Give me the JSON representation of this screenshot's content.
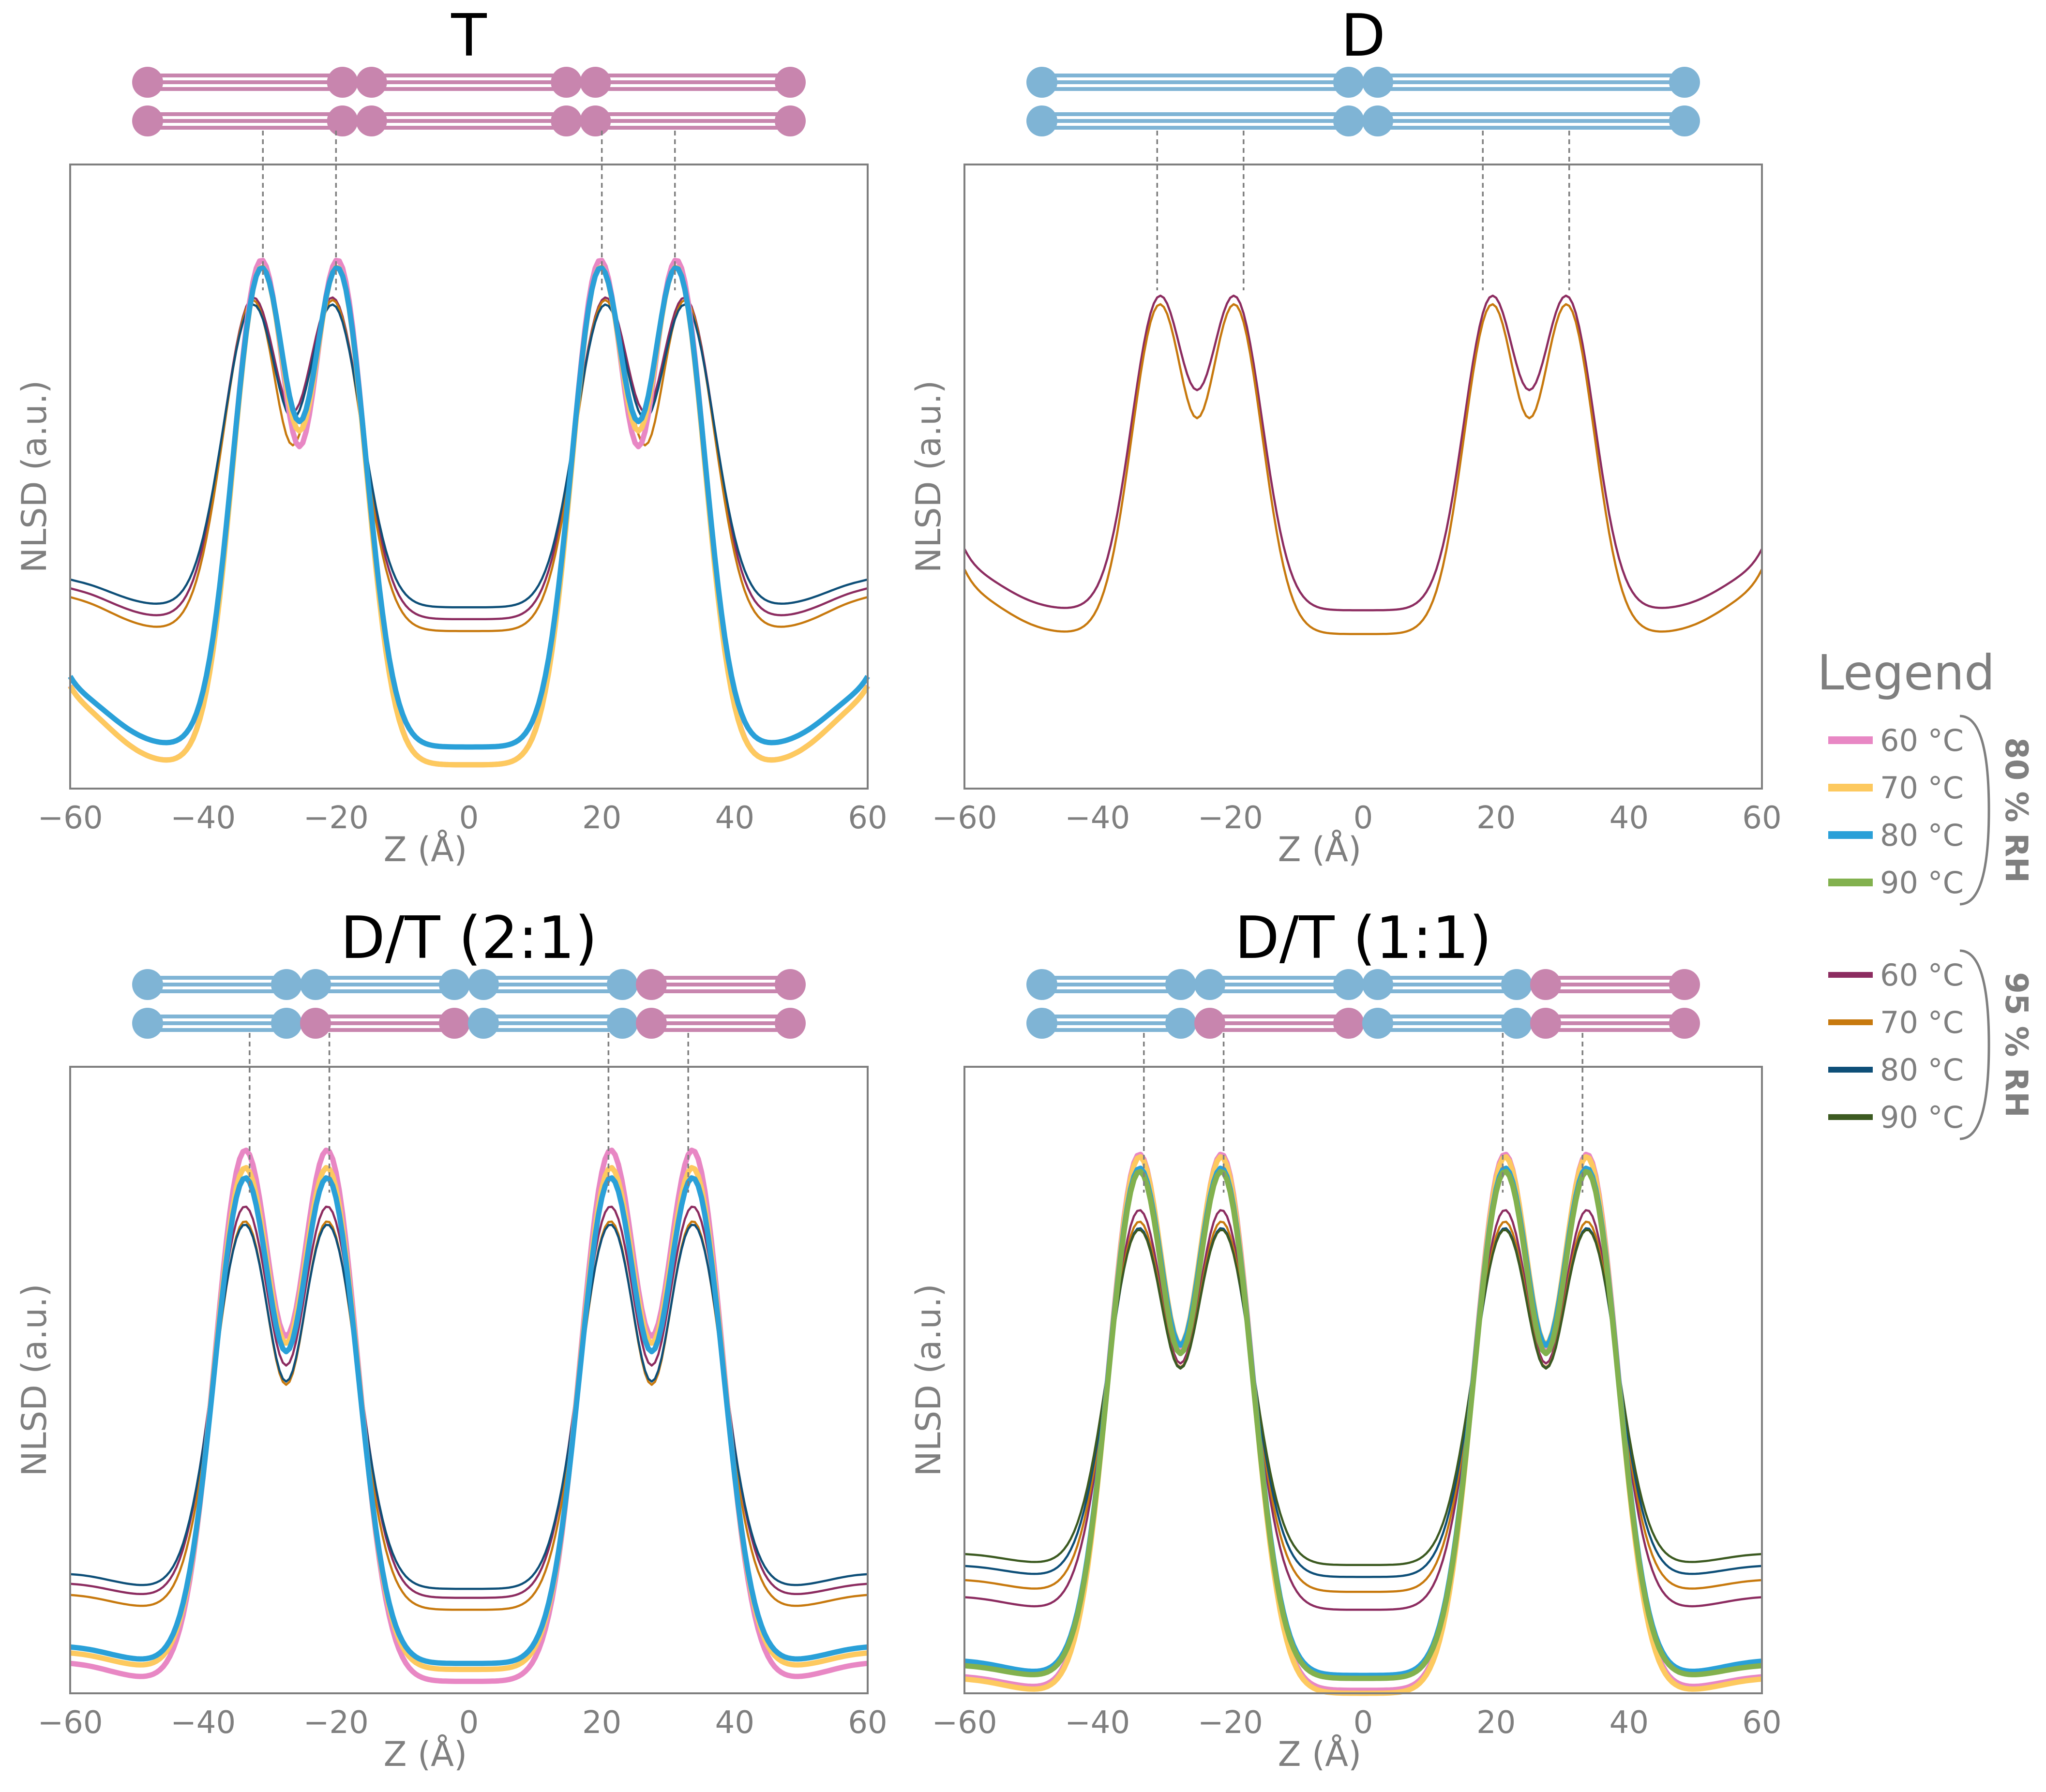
{
  "colors": {
    "rh80": {
      "60 °C": "#e887c4",
      "70 °C": "#fdc95f",
      "80 °C": "#2aa0d8",
      "90 °C": "#82b14e"
    },
    "rh95": {
      "60 °C": "#8c2c60",
      "70 °C": "#c7790e",
      "80 °C": "#0e4f78",
      "90 °C": "#3c5a21"
    },
    "lipid_D": "#7fb4d5",
    "lipid_T": "#c885ae"
  },
  "legend": {
    "title": "Legend",
    "groups": [
      {
        "label": "80 % RH",
        "rh": "rh80",
        "entries": [
          "60 °C",
          "70 °C",
          "80 °C",
          "90 °C"
        ]
      },
      {
        "label": "95 % RH",
        "rh": "rh95",
        "entries": [
          "60 °C",
          "70 °C",
          "80 °C",
          "90 °C"
        ]
      }
    ]
  },
  "chart_data": [
    {
      "type": "line",
      "title": "T",
      "xlabel": "Z (Å)",
      "ylabel": "NLSD (a.u.)",
      "xlim": [
        -60,
        60
      ],
      "ylim": [
        -1.0,
        1.1
      ],
      "xticks": [
        "−60",
        "−40",
        "−20",
        "0",
        "20",
        "40",
        "60"
      ],
      "grid": false,
      "schematic": {
        "type": "T",
        "bilayers": [
          "T",
          "T",
          "T"
        ]
      },
      "head_markers": [
        -31,
        -20,
        20,
        31
      ],
      "series": [
        {
          "name": "60 °C",
          "rh": "rh80",
          "peak": 0.98,
          "dip": 0.78,
          "min": -0.92,
          "outer": -0.12,
          "period": 51
        },
        {
          "name": "70 °C",
          "rh": "rh80",
          "peak": 0.95,
          "dip": 0.83,
          "min": -0.92,
          "outer": -0.12,
          "period": 51
        },
        {
          "name": "80 °C",
          "rh": "rh80",
          "peak": 0.94,
          "dip": 0.84,
          "min": -0.86,
          "outer": -0.16,
          "period": 51
        },
        {
          "name": "60 °C",
          "rh": "rh95",
          "peak": 0.78,
          "dip": 0.67,
          "min": -0.43,
          "outer": -0.05,
          "period": 53
        },
        {
          "name": "70 °C",
          "rh": "rh95",
          "peak": 0.78,
          "dip": 0.56,
          "min": -0.47,
          "outer": -0.05,
          "period": 53
        },
        {
          "name": "80 °C",
          "rh": "rh95",
          "peak": 0.75,
          "dip": 0.62,
          "min": -0.39,
          "outer": -0.05,
          "period": 53
        }
      ]
    },
    {
      "type": "line",
      "title": "D",
      "xlabel": "Z (Å)",
      "ylabel": "NLSD (a.u.)",
      "xlim": [
        -60,
        60
      ],
      "ylim": [
        -1.0,
        1.1
      ],
      "xticks": [
        "−60",
        "−40",
        "−20",
        "0",
        "20",
        "40",
        "60"
      ],
      "grid": false,
      "schematic": {
        "type": "D",
        "bilayers": [
          "D",
          "D"
        ]
      },
      "head_markers": [
        -31,
        -18,
        18,
        31
      ],
      "series": [
        {
          "name": "60 °C",
          "rh": "rh95",
          "peak": 0.78,
          "dip": 0.74,
          "min": -0.4,
          "outer": 0.1,
          "period": 50
        },
        {
          "name": "70 °C",
          "rh": "rh95",
          "peak": 0.76,
          "dip": 0.66,
          "min": -0.48,
          "outer": 0.05,
          "period": 50
        }
      ]
    },
    {
      "type": "line",
      "title": "D/T (2:1)",
      "xlabel": "Z (Å)",
      "ylabel": "NLSD (a.u.)",
      "xlim": [
        -60,
        60
      ],
      "ylim": [
        -1.0,
        1.1
      ],
      "xticks": [
        "−60",
        "−40",
        "−20",
        "0",
        "20",
        "40",
        "60"
      ],
      "grid": false,
      "schematic": {
        "type": "DT",
        "bilayers": [
          "D",
          "DT",
          "D",
          "T"
        ]
      },
      "head_markers": [
        -33,
        -21,
        21,
        33
      ],
      "series": [
        {
          "name": "60 °C",
          "rh": "rh80",
          "peak": 1.03,
          "dip": 0.86,
          "min": -0.96,
          "outer": -0.73,
          "period": 55
        },
        {
          "name": "70 °C",
          "rh": "rh80",
          "peak": 0.96,
          "dip": 0.8,
          "min": -0.92,
          "outer": -0.71,
          "period": 55
        },
        {
          "name": "80 °C",
          "rh": "rh80",
          "peak": 0.92,
          "dip": 0.75,
          "min": -0.9,
          "outer": -0.69,
          "period": 55
        },
        {
          "name": "60 °C",
          "rh": "rh95",
          "peak": 0.79,
          "dip": 0.58,
          "min": -0.68,
          "outer": -0.5,
          "period": 55
        },
        {
          "name": "70 °C",
          "rh": "rh95",
          "peak": 0.74,
          "dip": 0.51,
          "min": -0.72,
          "outer": -0.53,
          "period": 55
        },
        {
          "name": "80 °C",
          "rh": "rh95",
          "peak": 0.72,
          "dip": 0.49,
          "min": -0.65,
          "outer": -0.46,
          "period": 55
        }
      ]
    },
    {
      "type": "line",
      "title": "D/T (1:1)",
      "xlabel": "Z (Å)",
      "ylabel": "NLSD (a.u.)",
      "xlim": [
        -60,
        60
      ],
      "ylim": [
        -1.0,
        1.1
      ],
      "xticks": [
        "−60",
        "−40",
        "−20",
        "0",
        "20",
        "40",
        "60"
      ],
      "grid": false,
      "schematic": {
        "type": "DT",
        "bilayers": [
          "D",
          "DT",
          "D",
          "T"
        ]
      },
      "head_markers": [
        -33,
        -21,
        21,
        33
      ],
      "series": [
        {
          "name": "60 °C",
          "rh": "rh80",
          "peak": 1.02,
          "dip": 0.81,
          "min": -0.99,
          "outer": -0.82,
          "period": 55
        },
        {
          "name": "70 °C",
          "rh": "rh80",
          "peak": 1.01,
          "dip": 0.84,
          "min": -1.0,
          "outer": -0.82,
          "period": 55
        },
        {
          "name": "80 °C",
          "rh": "rh80",
          "peak": 0.96,
          "dip": 0.8,
          "min": -0.94,
          "outer": -0.76,
          "period": 55
        },
        {
          "name": "90 °C",
          "rh": "rh80",
          "peak": 0.95,
          "dip": 0.77,
          "min": -0.95,
          "outer": -0.79,
          "period": 55
        },
        {
          "name": "60 °C",
          "rh": "rh95",
          "peak": 0.78,
          "dip": 0.6,
          "min": -0.72,
          "outer": -0.56,
          "period": 55
        },
        {
          "name": "70 °C",
          "rh": "rh95",
          "peak": 0.73,
          "dip": 0.55,
          "min": -0.66,
          "outer": -0.51,
          "period": 55
        },
        {
          "name": "80 °C",
          "rh": "rh95",
          "peak": 0.7,
          "dip": 0.52,
          "min": -0.61,
          "outer": -0.47,
          "period": 55
        },
        {
          "name": "90 °C",
          "rh": "rh95",
          "peak": 0.69,
          "dip": 0.5,
          "min": -0.57,
          "outer": -0.43,
          "period": 55
        }
      ]
    }
  ]
}
